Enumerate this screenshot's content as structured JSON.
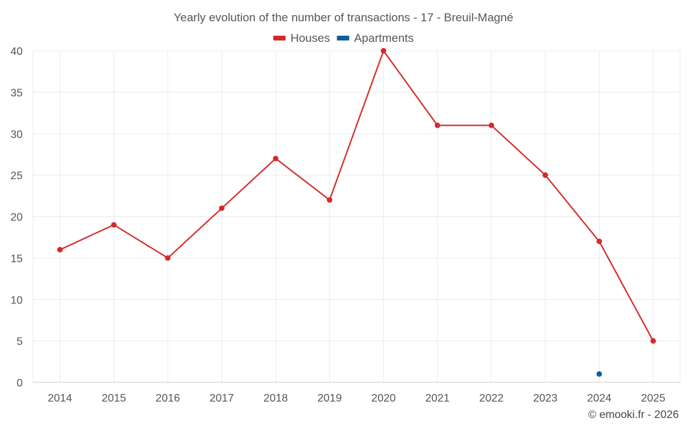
{
  "chart_data": {
    "type": "line",
    "title": "Yearly evolution of the number of transactions - 17 - Breuil-Magné",
    "categories": [
      "2014",
      "2015",
      "2016",
      "2017",
      "2018",
      "2019",
      "2020",
      "2021",
      "2022",
      "2023",
      "2024",
      "2025"
    ],
    "series": [
      {
        "name": "Houses",
        "color": "#d42a2a",
        "values": [
          16,
          19,
          15,
          21,
          27,
          22,
          40,
          31,
          31,
          25,
          17,
          5
        ]
      },
      {
        "name": "Apartments",
        "color": "#0e5f97",
        "values": [
          null,
          null,
          null,
          null,
          null,
          null,
          null,
          null,
          null,
          null,
          1,
          null
        ]
      }
    ],
    "ylim": [
      0,
      40
    ],
    "yticks": [
      0,
      5,
      10,
      15,
      20,
      25,
      30,
      35,
      40
    ],
    "xlabel": "",
    "ylabel": "",
    "grid": true,
    "legend_position": "top-center"
  },
  "credit": "© emooki.fr - 2026"
}
